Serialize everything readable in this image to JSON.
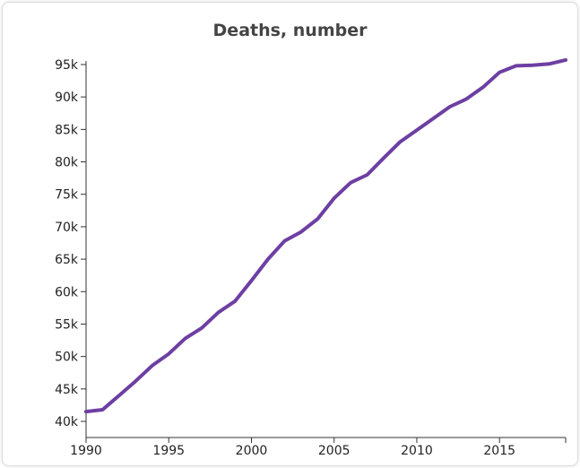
{
  "chart_data": {
    "type": "line",
    "title": "Deaths, number",
    "xlabel": "",
    "ylabel": "",
    "xlim": [
      1990,
      2019
    ],
    "ylim": [
      40000,
      95000
    ],
    "x_ticks": [
      1990,
      1995,
      2000,
      2005,
      2010,
      2015
    ],
    "x_tick_labels": [
      "1990",
      "1995",
      "2000",
      "2005",
      "2010",
      "2015"
    ],
    "y_ticks": [
      40000,
      45000,
      50000,
      55000,
      60000,
      65000,
      70000,
      75000,
      80000,
      85000,
      90000,
      95000
    ],
    "y_tick_labels": [
      "40k",
      "45k",
      "50k",
      "55k",
      "60k",
      "65k",
      "70k",
      "75k",
      "80k",
      "85k",
      "90k",
      "95k"
    ],
    "grid": false,
    "legend": "none",
    "line_color": "#6d3fa2",
    "series": [
      {
        "x": [
          1990,
          1991,
          1992,
          1993,
          1994,
          1995,
          1996,
          1997,
          1998,
          1999,
          2000,
          2001,
          2002,
          2003,
          2004,
          2005,
          2006,
          2007,
          2008,
          2009,
          2010,
          2011,
          2012,
          2013,
          2014,
          2015,
          2016,
          2017,
          2018,
          2019
        ],
        "values": [
          41500,
          41800,
          44000,
          46200,
          48600,
          50400,
          52800,
          54400,
          56800,
          58500,
          61700,
          65000,
          67800,
          69200,
          71200,
          74400,
          76800,
          78000,
          80600,
          83100,
          84900,
          86700,
          88500,
          89700,
          91500,
          93800,
          94800,
          94900,
          95100,
          95700
        ]
      }
    ]
  }
}
